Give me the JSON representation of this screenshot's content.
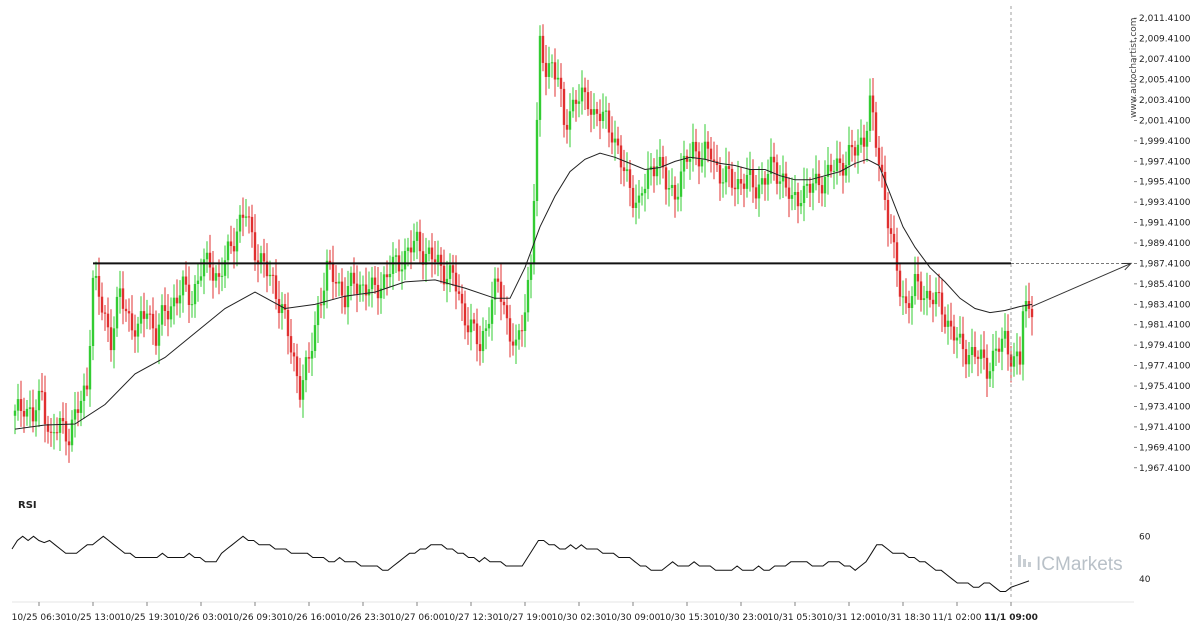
{
  "chart_data": {
    "type": "candlestick",
    "instrument_watermark": "www.autochartist.com",
    "brand": "ICMarkets",
    "colors": {
      "up": "#33cc33",
      "down": "#e03030",
      "ma_line": "#222222",
      "level_line": "#111111",
      "rsi_line": "#111111"
    },
    "y_axis": {
      "range": [
        1966.41,
        2012.41
      ],
      "ticks": [
        "2,011.4100",
        "2,009.4100",
        "2,007.4100",
        "2,005.4100",
        "2,003.4100",
        "2,001.4100",
        "1,999.4100",
        "1,997.4100",
        "1,995.4100",
        "1,993.4100",
        "1,991.4100",
        "1,989.4100",
        "1,987.4100",
        "1,985.4100",
        "1,983.4100",
        "1,981.4100",
        "1,979.4100",
        "1,977.4100",
        "1,975.4100",
        "1,973.4100",
        "1,971.4100",
        "1,969.4100",
        "1,967.4100"
      ],
      "tick_values": [
        2011.41,
        2009.41,
        2007.41,
        2005.41,
        2003.41,
        2001.41,
        1999.41,
        1997.41,
        1995.41,
        1993.41,
        1991.41,
        1989.41,
        1987.41,
        1985.41,
        1983.41,
        1981.41,
        1979.41,
        1977.41,
        1975.41,
        1973.41,
        1971.41,
        1969.41,
        1967.41
      ]
    },
    "x_axis": {
      "ticks": [
        {
          "label": "10/25 06:30",
          "bar": 8
        },
        {
          "label": "10/25 13:00",
          "bar": 26
        },
        {
          "label": "10/25 19:30",
          "bar": 44
        },
        {
          "label": "10/26 03:00",
          "bar": 62
        },
        {
          "label": "10/26 09:30",
          "bar": 80
        },
        {
          "label": "10/26 16:00",
          "bar": 98
        },
        {
          "label": "10/26 23:30",
          "bar": 116
        },
        {
          "label": "10/27 06:00",
          "bar": 134
        },
        {
          "label": "10/27 12:30",
          "bar": 152
        },
        {
          "label": "10/27 19:00",
          "bar": 170
        },
        {
          "label": "10/30 02:30",
          "bar": 188
        },
        {
          "label": "10/30 09:00",
          "bar": 206
        },
        {
          "label": "10/30 15:30",
          "bar": 224
        },
        {
          "label": "10/30 23:00",
          "bar": 242
        },
        {
          "label": "10/31 05:30",
          "bar": 260
        },
        {
          "label": "10/31 12:00",
          "bar": 278
        },
        {
          "label": "10/31 18:30",
          "bar": 296
        },
        {
          "label": "11/1 02:00",
          "bar": 314
        },
        {
          "label": "11/1 09:00",
          "bar": 332,
          "bold": true
        }
      ]
    },
    "candles_close_path": [
      [
        0,
        1972.4
      ],
      [
        3,
        1973.8
      ],
      [
        6,
        1972.2
      ],
      [
        9,
        1974.6
      ],
      [
        12,
        1970.1
      ],
      [
        15,
        1971.6
      ],
      [
        18,
        1970.8
      ],
      [
        21,
        1973.0
      ],
      [
        24,
        1975.6
      ],
      [
        26,
        1985.9
      ],
      [
        29,
        1983.0
      ],
      [
        32,
        1980.2
      ],
      [
        35,
        1984.2
      ],
      [
        38,
        1982.2
      ],
      [
        41,
        1980.6
      ],
      [
        44,
        1983.2
      ],
      [
        47,
        1980.3
      ],
      [
        50,
        1982.6
      ],
      [
        53,
        1983.8
      ],
      [
        56,
        1984.8
      ],
      [
        59,
        1984.2
      ],
      [
        62,
        1986.6
      ],
      [
        65,
        1987.7
      ],
      [
        68,
        1985.6
      ],
      [
        71,
        1988.4
      ],
      [
        74,
        1990.9
      ],
      [
        77,
        1992.2
      ],
      [
        80,
        1989.0
      ],
      [
        83,
        1986.9
      ],
      [
        86,
        1985.6
      ],
      [
        89,
        1983.0
      ],
      [
        92,
        1979.0
      ],
      [
        95,
        1975.4
      ],
      [
        98,
        1977.6
      ],
      [
        101,
        1983.2
      ],
      [
        104,
        1986.5
      ],
      [
        107,
        1986.0
      ],
      [
        110,
        1984.0
      ],
      [
        113,
        1985.6
      ],
      [
        116,
        1985.2
      ],
      [
        119,
        1984.6
      ],
      [
        122,
        1985.5
      ],
      [
        125,
        1986.7
      ],
      [
        128,
        1987.6
      ],
      [
        131,
        1988.6
      ],
      [
        134,
        1989.4
      ],
      [
        137,
        1988.4
      ],
      [
        140,
        1987.6
      ],
      [
        143,
        1986.8
      ],
      [
        146,
        1986.0
      ],
      [
        149,
        1983.0
      ],
      [
        152,
        1981.2
      ],
      [
        155,
        1979.0
      ],
      [
        158,
        1982.8
      ],
      [
        161,
        1985.4
      ],
      [
        164,
        1982.0
      ],
      [
        167,
        1978.6
      ],
      [
        170,
        1983.0
      ],
      [
        172,
        1988.0
      ],
      [
        174,
        2000.5
      ],
      [
        175,
        2008.4
      ],
      [
        177,
        2006.6
      ],
      [
        179,
        2007.1
      ],
      [
        181,
        2005.2
      ],
      [
        183,
        2000.9
      ],
      [
        185,
        2002.6
      ],
      [
        187,
        2003.4
      ],
      [
        189,
        2003.4
      ],
      [
        191,
        2003.7
      ],
      [
        193,
        2002.0
      ],
      [
        195,
        2001.7
      ],
      [
        197,
        2001.4
      ],
      [
        199,
        2000.6
      ],
      [
        202,
        1997.0
      ],
      [
        205,
        1995.0
      ],
      [
        208,
        1993.0
      ],
      [
        211,
        1996.0
      ],
      [
        214,
        1997.8
      ],
      [
        217,
        1995.0
      ],
      [
        220,
        1994.4
      ],
      [
        223,
        1996.6
      ],
      [
        226,
        1999.0
      ],
      [
        229,
        1997.6
      ],
      [
        232,
        1998.4
      ],
      [
        235,
        1996.0
      ],
      [
        238,
        1995.6
      ],
      [
        241,
        1995.4
      ],
      [
        244,
        1995.4
      ],
      [
        247,
        1995.0
      ],
      [
        250,
        1995.6
      ],
      [
        253,
        1997.0
      ],
      [
        256,
        1995.6
      ],
      [
        259,
        1993.2
      ],
      [
        262,
        1994.5
      ],
      [
        265,
        1994.6
      ],
      [
        268,
        1995.6
      ],
      [
        271,
        1996.0
      ],
      [
        274,
        1997.0
      ],
      [
        277,
        1997.6
      ],
      [
        280,
        1998.4
      ],
      [
        283,
        1999.8
      ],
      [
        285,
        2003.0
      ],
      [
        287,
        1999.0
      ],
      [
        289,
        1996.0
      ],
      [
        291,
        1992.0
      ],
      [
        293,
        1988.0
      ],
      [
        295,
        1985.0
      ],
      [
        297,
        1983.4
      ],
      [
        300,
        1985.0
      ],
      [
        303,
        1984.6
      ],
      [
        306,
        1984.0
      ],
      [
        309,
        1983.0
      ],
      [
        312,
        1981.0
      ],
      [
        315,
        1979.2
      ],
      [
        318,
        1978.8
      ],
      [
        321,
        1978.2
      ],
      [
        324,
        1977.4
      ],
      [
        327,
        1978.6
      ],
      [
        330,
        1980.0
      ],
      [
        333,
        1978.0
      ],
      [
        335,
        1977.6
      ],
      [
        336,
        1982.8
      ],
      [
        338,
        1983.2
      ],
      [
        339,
        1983.6
      ]
    ],
    "ma_path": [
      [
        0,
        1971.2
      ],
      [
        10,
        1971.6
      ],
      [
        20,
        1971.7
      ],
      [
        30,
        1973.6
      ],
      [
        40,
        1976.6
      ],
      [
        50,
        1978.2
      ],
      [
        60,
        1980.6
      ],
      [
        70,
        1983.0
      ],
      [
        80,
        1984.6
      ],
      [
        90,
        1983.0
      ],
      [
        100,
        1983.4
      ],
      [
        110,
        1984.2
      ],
      [
        120,
        1984.6
      ],
      [
        130,
        1985.6
      ],
      [
        140,
        1985.8
      ],
      [
        150,
        1985.0
      ],
      [
        160,
        1984.0
      ],
      [
        165,
        1984.0
      ],
      [
        170,
        1987.0
      ],
      [
        175,
        1991.0
      ],
      [
        180,
        1994.0
      ],
      [
        185,
        1996.4
      ],
      [
        190,
        1997.6
      ],
      [
        195,
        1998.2
      ],
      [
        200,
        1997.8
      ],
      [
        205,
        1997.2
      ],
      [
        210,
        1996.6
      ],
      [
        215,
        1996.8
      ],
      [
        220,
        1997.4
      ],
      [
        225,
        1997.8
      ],
      [
        230,
        1997.6
      ],
      [
        235,
        1997.2
      ],
      [
        240,
        1997.0
      ],
      [
        245,
        1996.6
      ],
      [
        250,
        1996.6
      ],
      [
        255,
        1996.0
      ],
      [
        260,
        1995.6
      ],
      [
        265,
        1995.6
      ],
      [
        270,
        1996.0
      ],
      [
        275,
        1996.4
      ],
      [
        280,
        1997.2
      ],
      [
        284,
        1997.6
      ],
      [
        288,
        1997.0
      ],
      [
        292,
        1994.0
      ],
      [
        296,
        1991.0
      ],
      [
        300,
        1989.0
      ],
      [
        305,
        1987.0
      ],
      [
        310,
        1985.6
      ],
      [
        315,
        1984.0
      ],
      [
        320,
        1983.0
      ],
      [
        325,
        1982.6
      ],
      [
        330,
        1982.8
      ],
      [
        335,
        1983.2
      ],
      [
        339,
        1983.4
      ]
    ],
    "horizontal_level": 1987.41,
    "level_start_bar": 26,
    "current_bar": 332,
    "forecast_arrow": {
      "from": [
        339,
        1983.2
      ],
      "to_y": 1987.41
    },
    "rsi": {
      "label": "RSI",
      "ticks": [
        "60",
        "40"
      ],
      "tick_values": [
        60,
        40
      ],
      "range": [
        30,
        70
      ],
      "values": [
        54,
        58,
        60,
        58,
        60,
        58,
        57,
        58,
        56,
        54,
        52,
        52,
        52,
        54,
        56,
        56,
        58,
        60,
        58,
        56,
        54,
        52,
        52,
        50,
        50,
        50,
        50,
        50,
        52,
        50,
        50,
        50,
        50,
        52,
        50,
        50,
        48,
        48,
        48,
        52,
        54,
        56,
        58,
        60,
        58,
        58,
        56,
        56,
        56,
        54,
        54,
        54,
        52,
        52,
        52,
        52,
        50,
        50,
        50,
        48,
        48,
        50,
        48,
        48,
        48,
        46,
        46,
        46,
        46,
        44,
        44,
        46,
        48,
        50,
        52,
        52,
        54,
        54,
        56,
        56,
        56,
        54,
        54,
        52,
        52,
        50,
        50,
        48,
        50,
        48,
        48,
        48,
        46,
        46,
        46,
        46,
        50,
        54,
        58,
        58,
        56,
        56,
        54,
        54,
        56,
        54,
        56,
        54,
        54,
        54,
        52,
        52,
        52,
        50,
        50,
        50,
        48,
        46,
        46,
        44,
        44,
        44,
        46,
        48,
        46,
        46,
        46,
        48,
        46,
        46,
        46,
        44,
        44,
        44,
        44,
        46,
        44,
        44,
        44,
        46,
        44,
        44,
        46,
        46,
        46,
        48,
        48,
        48,
        48,
        46,
        46,
        46,
        48,
        48,
        48,
        46,
        46,
        44,
        46,
        48,
        52,
        56,
        56,
        54,
        52,
        52,
        52,
        50,
        50,
        48,
        48,
        46,
        44,
        44,
        42,
        40,
        38,
        38,
        38,
        36,
        36,
        38,
        38,
        36,
        34,
        34,
        36
      ]
    }
  }
}
